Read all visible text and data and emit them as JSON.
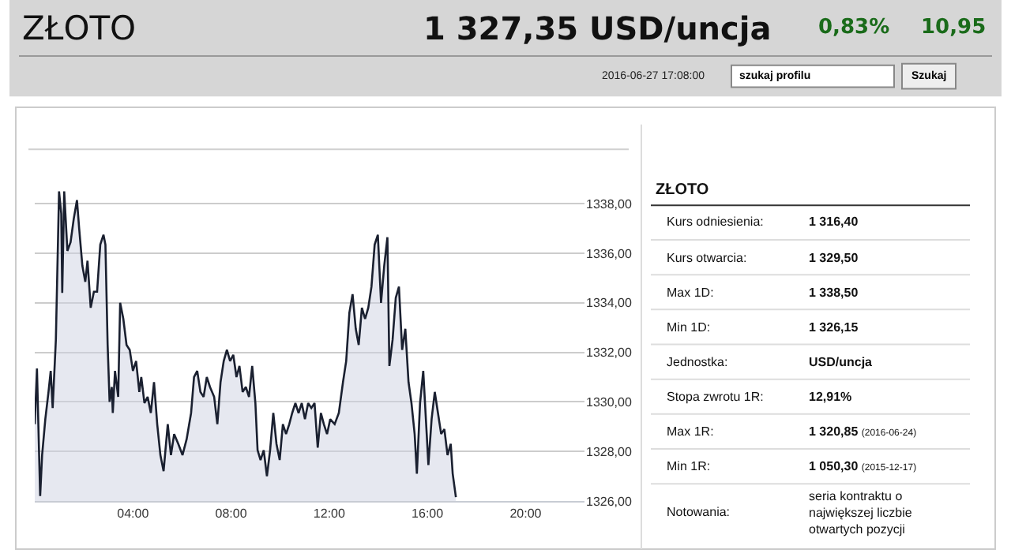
{
  "chart_data": [
    {
      "type": "area",
      "title": "ZŁOTO",
      "annotations": [
        "1 327,35 USD/uncja",
        "0,83%",
        "10,95",
        "2016-06-27 17:08:00",
        "szukaj profilu",
        "Szukaj"
      ],
      "x": [
        0,
        0.09,
        0.22,
        0.3,
        0.43,
        0.56,
        0.65,
        0.73,
        0.86,
        0.99,
        1.08,
        1.12,
        1.2,
        1.33,
        1.46,
        1.59,
        1.72,
        1.81,
        1.94,
        2.06,
        2.15,
        2.28,
        2.41,
        2.54,
        2.67,
        2.8,
        2.88,
        2.97,
        3.05,
        3.14,
        3.18,
        3.27,
        3.4,
        3.48,
        3.61,
        3.74,
        3.87,
        4.0,
        4.13,
        4.26,
        4.34,
        4.47,
        4.6,
        4.73,
        4.86,
        4.99,
        5.12,
        5.25,
        5.42,
        5.55,
        5.68,
        5.85,
        6.02,
        6.19,
        6.37,
        6.49,
        6.62,
        6.75,
        6.88,
        7.01,
        7.14,
        7.31,
        7.44,
        7.57,
        7.7,
        7.83,
        7.96,
        8.09,
        8.22,
        8.34,
        8.47,
        8.6,
        8.73,
        8.86,
        8.99,
        9.08,
        9.2,
        9.33,
        9.46,
        9.59,
        9.72,
        9.85,
        9.98,
        10.11,
        10.24,
        10.37,
        10.49,
        10.62,
        10.75,
        10.88,
        11.01,
        11.14,
        11.27,
        11.4,
        11.53,
        11.66,
        11.78,
        11.91,
        12.04,
        12.22,
        12.39,
        12.56,
        12.69,
        12.82,
        12.95,
        13.08,
        13.2,
        13.33,
        13.46,
        13.59,
        13.72,
        13.85,
        13.98,
        14.11,
        14.24,
        14.37,
        14.45,
        14.58,
        14.71,
        14.84,
        14.97,
        15.1,
        15.23,
        15.35,
        15.48,
        15.57,
        15.7,
        15.83,
        15.96,
        16.04,
        16.17,
        16.3,
        16.43,
        16.56,
        16.69,
        16.82,
        16.95,
        17.03,
        17.16
      ],
      "series": [
        {
          "color": "#1a2030",
          "values": [
            1329.1,
            1331.35,
            1326.2,
            1327.85,
            1329.3,
            1330.4,
            1331.25,
            1329.75,
            1332.5,
            1338.5,
            1337.6,
            1334.4,
            1338.5,
            1336.1,
            1336.45,
            1337.4,
            1338.15,
            1337.0,
            1335.5,
            1334.85,
            1335.7,
            1333.8,
            1334.45,
            1334.45,
            1336.35,
            1336.75,
            1336.35,
            1332.3,
            1330.0,
            1330.6,
            1329.55,
            1331.25,
            1330.2,
            1334.0,
            1333.35,
            1332.3,
            1332.1,
            1331.25,
            1331.65,
            1330.4,
            1331.0,
            1329.95,
            1330.2,
            1329.55,
            1330.8,
            1329.1,
            1327.85,
            1327.2,
            1329.1,
            1327.85,
            1328.7,
            1328.3,
            1327.85,
            1328.5,
            1329.55,
            1331.0,
            1331.25,
            1330.4,
            1330.2,
            1331.0,
            1330.6,
            1330.2,
            1329.1,
            1330.8,
            1331.65,
            1332.1,
            1331.65,
            1331.9,
            1331.0,
            1331.45,
            1330.4,
            1330.6,
            1330.2,
            1331.45,
            1329.95,
            1328.05,
            1327.65,
            1328.05,
            1327.0,
            1328.05,
            1329.55,
            1328.3,
            1327.65,
            1329.1,
            1328.7,
            1329.1,
            1329.55,
            1329.95,
            1329.55,
            1329.95,
            1329.3,
            1329.95,
            1329.75,
            1329.95,
            1328.15,
            1329.55,
            1329.1,
            1328.7,
            1329.3,
            1329.1,
            1329.55,
            1330.8,
            1331.65,
            1333.6,
            1334.35,
            1332.95,
            1332.3,
            1333.8,
            1333.35,
            1333.8,
            1334.65,
            1336.35,
            1336.75,
            1334.0,
            1335.5,
            1336.65,
            1331.45,
            1332.5,
            1334.2,
            1334.65,
            1332.1,
            1332.95,
            1330.8,
            1329.95,
            1328.7,
            1327.1,
            1329.95,
            1331.25,
            1328.9,
            1327.45,
            1329.3,
            1330.4,
            1329.55,
            1328.7,
            1328.9,
            1327.85,
            1328.3,
            1327.1,
            1326.15
          ]
        }
      ],
      "xlim": [
        0,
        22.4
      ],
      "xticks": [
        {
          "value": 4,
          "label": "04:00"
        },
        {
          "value": 8,
          "label": "08:00"
        },
        {
          "value": 12,
          "label": "12:00"
        },
        {
          "value": 16,
          "label": "16:00"
        },
        {
          "value": 20,
          "label": "20:00"
        }
      ],
      "ylim": [
        1326,
        1340.2
      ],
      "yticks": [
        {
          "value": 1326,
          "label": "1326,00"
        },
        {
          "value": 1328,
          "label": "1328,00"
        },
        {
          "value": 1330,
          "label": "1330,00"
        },
        {
          "value": 1332,
          "label": "1332,00"
        },
        {
          "value": 1334,
          "label": "1334,00"
        },
        {
          "value": 1336,
          "label": "1336,00"
        },
        {
          "value": 1338,
          "label": "1338,00"
        }
      ],
      "grid": "y"
    },
    {
      "type": "other",
      "title": "ZŁOTO",
      "annotations": [
        "Kurs odniesienia:",
        "1 316,40",
        "Kurs otwarcia:",
        "1 329,50",
        "Max 1D:",
        "1 338,50",
        "Min 1D:",
        "1 326,15",
        "Jednostka:",
        "USD/uncja",
        "Stopa zwrotu 1R:",
        "12,91%",
        "Max 1R:",
        "1 320,85 (2016-06-24)",
        "Min 1R:",
        "1 050,30 (2015-12-17)",
        "Notowania:",
        "seria kontraktu o największej liczbie otwartych pozycji"
      ]
    }
  ]
}
